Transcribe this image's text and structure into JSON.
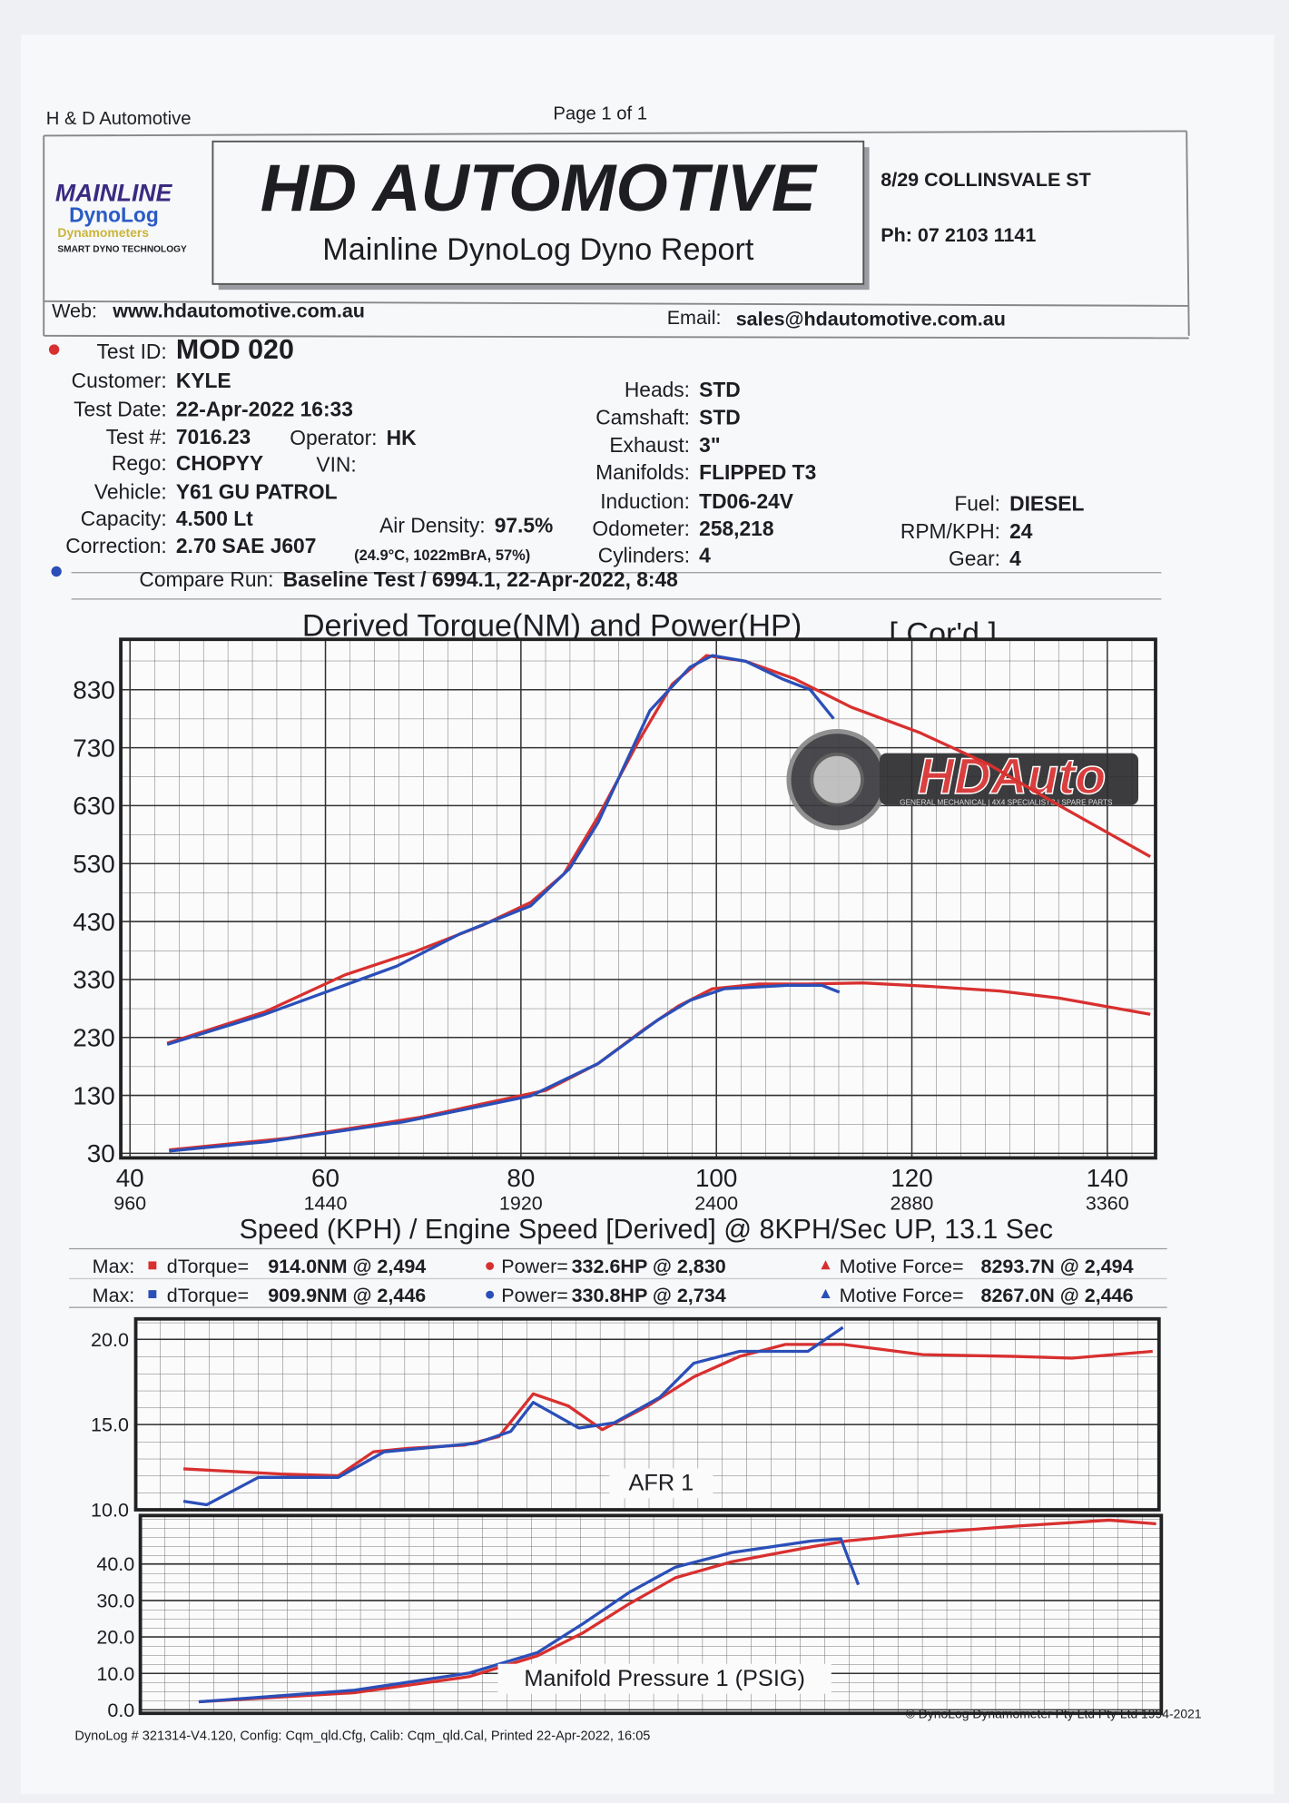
{
  "header": {
    "company_small": "H & D Automotive",
    "page": "Page 1 of 1",
    "logo_line1": "MAINLINE",
    "logo_line2": "DynoLog",
    "logo_line3": "Dynamometers",
    "logo_tagline": "SMART DYNO TECHNOLOGY",
    "title": "HD  AUTOMOTIVE",
    "subtitle": "Mainline DynoLog Dyno Report",
    "address": "8/29 COLLINSVALE ST",
    "phone": "Ph: 07 2103 1141",
    "web_label": "Web:",
    "web": "www.hdautomotive.com.au",
    "email_label": "Email:",
    "email": "sales@hdautomotive.com.au"
  },
  "fields": [
    {
      "label": "Test ID:",
      "value": "MOD 020"
    },
    {
      "label": "Customer:",
      "value": "KYLE"
    },
    {
      "label": "Test Date:",
      "value": "22-Apr-2022 16:33"
    },
    {
      "label": "Test #:",
      "value": "7016.23"
    },
    {
      "label": "Operator:",
      "value": "HK"
    },
    {
      "label": "Rego:",
      "value": "CHOPYY"
    },
    {
      "label": "VIN:"
    },
    {
      "label": "Vehicle:",
      "value": "Y61 GU PATROL"
    },
    {
      "label": "Capacity:",
      "value": "4.500 Lt"
    },
    {
      "label": "Air Density:",
      "value": "97.5%"
    },
    {
      "label": "Correction:",
      "value": "2.70 SAE J607"
    },
    {
      "label": "Heads:",
      "value": "STD"
    },
    {
      "label": "Camshaft:",
      "value": "STD"
    },
    {
      "label": "Exhaust:",
      "value": "3\""
    },
    {
      "label": "Manifolds:",
      "value": "FLIPPED T3"
    },
    {
      "label": "Induction:",
      "value": "TD06-24V"
    },
    {
      "label": "Odometer:",
      "value": "258,218"
    },
    {
      "label": "Cylinders:",
      "value": "4"
    },
    {
      "label": "Fuel:",
      "value": "DIESEL"
    },
    {
      "label": "RPM/KPH:",
      "value": "24"
    },
    {
      "label": "Gear:",
      "value": "4"
    },
    {
      "label": "Compare Run:",
      "value": "Baseline Test / 6994.1,   22-Apr-2022,    8:48"
    }
  ],
  "conditions": "(24.9°C, 1022mBrA, 57%)",
  "watermark": {
    "text": "HDAuto",
    "tagline": "GENERAL MECHANICAL | 4X4 SPECIALISTS | SPARE PARTS"
  },
  "max_rows": [
    {
      "label": "Max:",
      "torque_name": "dTorque=",
      "torque": "914.0NM @ 2,494",
      "power_name": "Power=",
      "power": "332.6HP @ 2,830",
      "force_name": "Motive Force=",
      "force": "8293.7N @ 2,494"
    },
    {
      "label": "Max:",
      "torque_name": "dTorque=",
      "torque": "909.9NM @ 2,446",
      "power_name": "Power=",
      "power": "330.8HP @ 2,734",
      "force_name": "Motive Force=",
      "force": "8267.0N @ 2,446"
    }
  ],
  "footer": {
    "left": "DynoLog # 321314-V4.120, Config: Cqm_qld.Cfg, Calib: Cqm_qld.Cal, Printed 22-Apr-2022, 16:05",
    "right": "© DynoLog Dynamometer Pty Ltd Pty Ltd 1994-2021"
  },
  "chart_data": [
    {
      "type": "line",
      "title": "Derived Torque(NM) and Power(HP)",
      "title_note": "[ Cor'd ]",
      "xlabel": "Speed (KPH) / Engine Speed [Derived] @ 8KPH/Sec UP, 13.1 Sec",
      "xlim": [
        40,
        144.7
      ],
      "xticks": [
        40,
        60,
        80,
        100,
        120,
        140
      ],
      "x2lim": [
        960,
        3473
      ],
      "x2ticks": [
        960,
        1440,
        1920,
        2400,
        2880,
        3360
      ],
      "ylim": [
        30,
        917
      ],
      "yticks": [
        30,
        130,
        230,
        330,
        430,
        530,
        630,
        730,
        830
      ],
      "grid": true,
      "series": [
        {
          "color": "#d8302f",
          "x": [
            43.8,
            53.8,
            62,
            69,
            76,
            81,
            84.4,
            87.9,
            92,
            95.5,
            99,
            103,
            108,
            113.8,
            120.8,
            127.9,
            135,
            144.4
          ],
          "values": [
            220,
            274,
            338,
            377,
            423,
            463,
            512,
            611,
            740,
            840,
            889,
            879,
            849,
            800,
            756,
            701,
            631,
            542
          ]
        },
        {
          "color": "#2b4fb8",
          "x": [
            43.8,
            53.8,
            67.3,
            73.8,
            81,
            85,
            87.9,
            93.2,
            97.3,
            99.6,
            103,
            106.7,
            109.6,
            112
          ],
          "values": [
            218,
            270,
            353,
            409,
            457,
            522,
            601,
            794,
            869,
            889,
            879,
            849,
            830,
            780
          ]
        },
        {
          "color": "#d8302f",
          "x": [
            44,
            56.1,
            69.6,
            82.6,
            87.9,
            92.6,
            96.1,
            99.6,
            104.4,
            109,
            115,
            122,
            129,
            135,
            144.4
          ],
          "values": [
            36,
            56,
            92,
            139,
            185,
            244,
            284,
            314,
            322,
            322,
            324,
            318,
            310,
            298,
            270
          ]
        },
        {
          "color": "#2b4fb8",
          "x": [
            44,
            54,
            67.9,
            81,
            87.9,
            94,
            97.3,
            100.8,
            107.3,
            110.8,
            112.6
          ],
          "values": [
            34,
            50,
            84,
            129,
            185,
            260,
            294,
            314,
            320,
            320,
            308
          ]
        }
      ]
    },
    {
      "type": "line",
      "title": "AFR 1",
      "xlim": [
        40,
        144.7
      ],
      "ylim": [
        10,
        21.2
      ],
      "yticks": [
        {
          "value": 10,
          "label": "10.0"
        },
        {
          "value": 15,
          "label": "15.0"
        },
        {
          "value": 20,
          "label": "20.0"
        }
      ],
      "grid": true,
      "series": [
        {
          "color": "#d8302f",
          "x": [
            44.9,
            54.9,
            60.8,
            64.4,
            67.9,
            73.8,
            77.3,
            80.8,
            84.4,
            87.9,
            92.6,
            97.3,
            102,
            106.7,
            112.6,
            120.8,
            130.2,
            136.1,
            144.4
          ],
          "values": [
            12.4,
            12.1,
            12.0,
            13.4,
            13.6,
            13.8,
            14.3,
            16.8,
            16.1,
            14.7,
            16.1,
            17.8,
            19.0,
            19.7,
            19.7,
            19.1,
            19.0,
            18.9,
            19.3
          ]
        },
        {
          "color": "#2b4fb8",
          "x": [
            44.9,
            47.3,
            52.6,
            60.8,
            65.5,
            74.9,
            78.5,
            80.8,
            85.5,
            89.1,
            93.8,
            97.3,
            102,
            109,
            112.6
          ],
          "values": [
            10.5,
            10.3,
            11.9,
            11.9,
            13.4,
            13.9,
            14.6,
            16.3,
            14.8,
            15.1,
            16.6,
            18.6,
            19.3,
            19.3,
            20.7
          ]
        }
      ]
    },
    {
      "type": "line",
      "title": "Manifold Pressure 1 (PSIG)",
      "xlim": [
        40,
        144.7
      ],
      "ylim": [
        0,
        52
      ],
      "yticks": [
        {
          "value": 0,
          "label": "0.0"
        },
        {
          "value": 10,
          "label": "10.0"
        },
        {
          "value": 20,
          "label": "20.0"
        },
        {
          "value": 30,
          "label": "30.0"
        },
        {
          "value": 40,
          "label": "40.0"
        }
      ],
      "grid": true,
      "series": [
        {
          "color": "#d8302f",
          "x": [
            46,
            62,
            73.8,
            80.8,
            85.5,
            90.2,
            95,
            100.8,
            109,
            112.6,
            120.8,
            130.2,
            139.6,
            144.4
          ],
          "values": [
            2.2,
            4.7,
            9.1,
            14.8,
            21.1,
            29.0,
            36.2,
            40.6,
            44.7,
            46.3,
            48.5,
            50.4,
            52.0,
            51.0
          ]
        },
        {
          "color": "#2b4fb8",
          "x": [
            46,
            62,
            73.8,
            80.8,
            85.5,
            90.2,
            95,
            100.8,
            109,
            112,
            113.8
          ],
          "values": [
            2.2,
            5.4,
            10.1,
            15.7,
            23.6,
            32.1,
            39.1,
            43.1,
            46.3,
            46.9,
            34.3
          ]
        }
      ]
    }
  ]
}
